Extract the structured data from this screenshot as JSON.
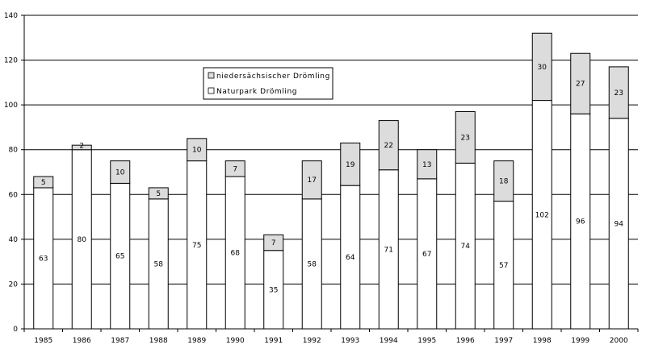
{
  "chart_data": {
    "type": "bar",
    "stacked": true,
    "categories": [
      "1985",
      "1986",
      "1987",
      "1988",
      "1989",
      "1990",
      "1991",
      "1992",
      "1993",
      "1994",
      "1995",
      "1996",
      "1997",
      "1998",
      "1999",
      "2000"
    ],
    "series": [
      {
        "name": "Naturpark Drömling",
        "color": "#ffffff",
        "values": [
          63,
          80,
          65,
          58,
          75,
          68,
          35,
          58,
          64,
          71,
          67,
          74,
          57,
          102,
          96,
          94
        ]
      },
      {
        "name": "niedersächsischer Drömling",
        "color": "#dcdcdc",
        "values": [
          5,
          2,
          10,
          5,
          10,
          7,
          7,
          17,
          19,
          22,
          13,
          23,
          18,
          30,
          27,
          23
        ]
      }
    ],
    "ylim": [
      0,
      140
    ],
    "yticks": [
      0,
      20,
      40,
      60,
      80,
      100,
      120,
      140
    ],
    "grid": true,
    "legend_position": "upper-left-center",
    "title": "",
    "xlabel": "",
    "ylabel": ""
  }
}
